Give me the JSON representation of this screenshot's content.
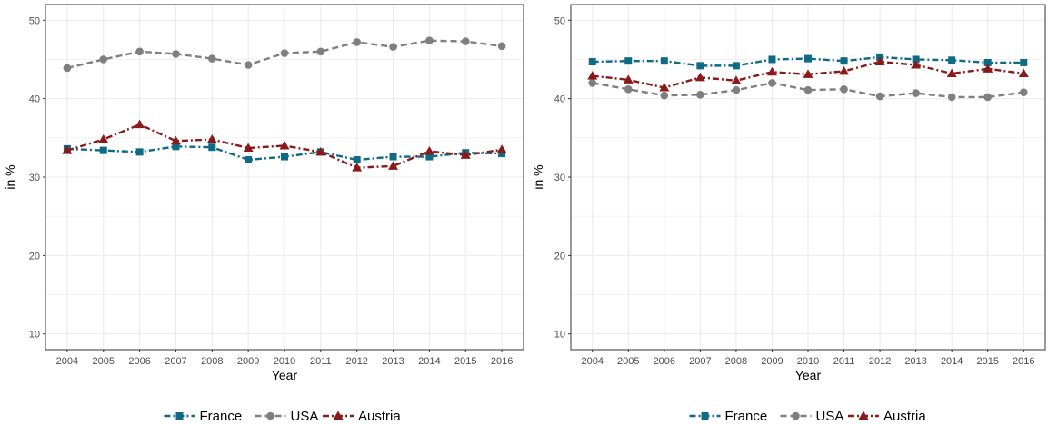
{
  "colors": {
    "France": "#0e6a85",
    "USA": "#7f7f7f",
    "Austria": "#8a1a1a",
    "grid": "#ebebeb",
    "panel_border": "#333333",
    "tick_text": "#4d4d4d"
  },
  "chart_data": [
    {
      "type": "line",
      "xlabel": "Year",
      "ylabel": "in %",
      "ylim": [
        8,
        52
      ],
      "yticks": [
        10,
        20,
        30,
        40,
        50
      ],
      "x": [
        "2004",
        "2005",
        "2006",
        "2007",
        "2008",
        "2009",
        "2010",
        "2011",
        "2012",
        "2013",
        "2014",
        "2015",
        "2016"
      ],
      "grid": true,
      "legend_position": "bottom",
      "series": [
        {
          "name": "France",
          "marker": "square",
          "line_style": "dash-dot",
          "values": [
            33.6,
            33.4,
            33.2,
            33.9,
            33.8,
            32.2,
            32.6,
            33.2,
            32.2,
            32.6,
            32.6,
            33.1,
            33.0
          ]
        },
        {
          "name": "USA",
          "marker": "circle",
          "line_style": "dashed",
          "values": [
            43.9,
            45.0,
            46.0,
            45.7,
            45.1,
            44.3,
            45.8,
            46.0,
            47.2,
            46.6,
            47.4,
            47.3,
            46.7
          ]
        },
        {
          "name": "Austria",
          "marker": "triangle",
          "line_style": "dash-dot",
          "values": [
            33.4,
            34.8,
            36.7,
            34.6,
            34.8,
            33.7,
            34.0,
            33.2,
            31.2,
            31.4,
            33.3,
            32.8,
            33.5
          ]
        }
      ]
    },
    {
      "type": "line",
      "xlabel": "Year",
      "ylabel": "in %",
      "ylim": [
        8,
        52
      ],
      "yticks": [
        10,
        20,
        30,
        40,
        50
      ],
      "x": [
        "2004",
        "2005",
        "2006",
        "2007",
        "2008",
        "2009",
        "2010",
        "2011",
        "2012",
        "2013",
        "2014",
        "2015",
        "2016"
      ],
      "grid": true,
      "legend_position": "bottom",
      "series": [
        {
          "name": "France",
          "marker": "square",
          "line_style": "dash-dot",
          "values": [
            44.7,
            44.8,
            44.8,
            44.2,
            44.2,
            45.0,
            45.1,
            44.8,
            45.3,
            45.0,
            44.9,
            44.6,
            44.6
          ]
        },
        {
          "name": "USA",
          "marker": "circle",
          "line_style": "dashed",
          "values": [
            42.0,
            41.2,
            40.4,
            40.5,
            41.1,
            42.0,
            41.1,
            41.2,
            40.3,
            40.7,
            40.2,
            40.2,
            40.8
          ]
        },
        {
          "name": "Austria",
          "marker": "triangle",
          "line_style": "dash-dot",
          "values": [
            42.9,
            42.4,
            41.4,
            42.7,
            42.3,
            43.4,
            43.1,
            43.5,
            44.7,
            44.3,
            43.2,
            43.8,
            43.2
          ]
        }
      ]
    }
  ]
}
